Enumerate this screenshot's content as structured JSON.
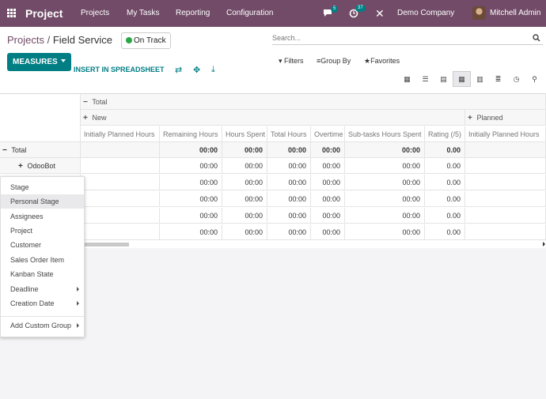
{
  "nav": {
    "app_name": "Project",
    "menu": [
      "Projects",
      "My Tasks",
      "Reporting",
      "Configuration"
    ],
    "messages_count": "5",
    "activities_count": "37",
    "company": "Demo Company",
    "user": "Mitchell Admin"
  },
  "control": {
    "breadcrumb_parent": "Projects",
    "breadcrumb_sep": "/",
    "breadcrumb_current": "Field Service",
    "status": "On Track",
    "search_placeholder": "Search...",
    "measures": "MEASURES",
    "insert": "INSERT IN SPREADSHEET",
    "filters": "Filters",
    "group_by": "Group By",
    "favorites": "Favorites"
  },
  "pivot": {
    "col_total": "Total",
    "col_new": "New",
    "col_planned": "Planned",
    "measures": [
      "Initially Planned Hours",
      "Remaining Hours",
      "Hours Spent",
      "Total Hours",
      "Overtime",
      "Sub-tasks Hours Spent",
      "Rating (/5)",
      "Initially Planned Hours"
    ],
    "row_total": "Total",
    "row_odoobot": "OdooBot",
    "rows": [
      [
        "",
        "00:00",
        "00:00",
        "00:00",
        "00:00",
        "00:00",
        "0.00",
        ""
      ],
      [
        "",
        "00:00",
        "00:00",
        "00:00",
        "00:00",
        "00:00",
        "0.00",
        ""
      ],
      [
        "",
        "00:00",
        "00:00",
        "00:00",
        "00:00",
        "00:00",
        "0.00",
        ""
      ],
      [
        "",
        "00:00",
        "00:00",
        "00:00",
        "00:00",
        "00:00",
        "0.00",
        ""
      ],
      [
        "",
        "00:00",
        "00:00",
        "00:00",
        "00:00",
        "00:00",
        "0.00",
        ""
      ],
      [
        "",
        "00:00",
        "00:00",
        "00:00",
        "00:00",
        "00:00",
        "0.00",
        ""
      ]
    ]
  },
  "dropdown": {
    "items": [
      "Stage",
      "Personal Stage",
      "Assignees",
      "Project",
      "Customer",
      "Sales Order Item",
      "Kanban State",
      "Deadline",
      "Creation Date"
    ],
    "custom": "Add Custom Group"
  }
}
